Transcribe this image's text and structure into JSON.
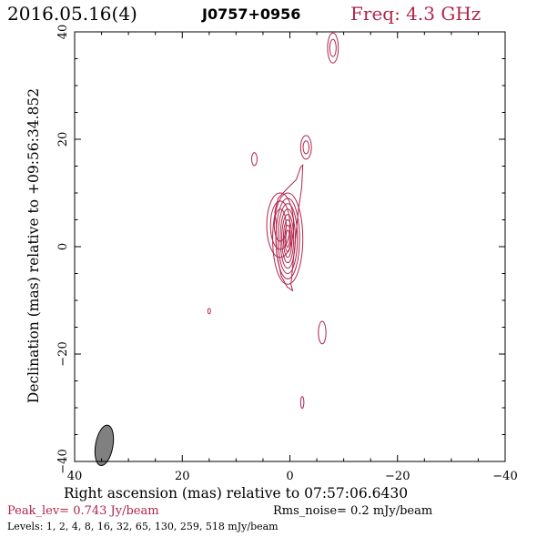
{
  "header": {
    "date": "2016.05.16(4)",
    "source": "J0757+0956",
    "freq": "Freq: 4.3 GHz"
  },
  "footer": {
    "peak": "Peak_lev=  0.743 Jy/beam",
    "rms": "Rms_noise=  0.2 mJy/beam",
    "levels": "Levels:   1,   2,   4,   8,  16,  32,  65, 130, 259, 518 mJy/beam"
  },
  "colors": {
    "contour": "#b0244a",
    "beam": "#808080",
    "axes": "#000000"
  },
  "chart_data": {
    "type": "contour",
    "xlabel": "Right ascension (mas) relative to 07:57:06.6430",
    "ylabel": "Declination (mas) relative to +09:56:34.852",
    "xlim": [
      40,
      -40
    ],
    "ylim": [
      -40,
      40
    ],
    "x_ticks": [
      "40",
      "20",
      "0",
      "−20",
      "−40"
    ],
    "y_ticks": [
      "−40",
      "−20",
      "0",
      "20",
      "40"
    ],
    "peak_jy_per_beam": 0.743,
    "rms_noise_mjy_per_beam": 0.2,
    "levels_mjy_per_beam": [
      1,
      2,
      4,
      8,
      16,
      32,
      65,
      130,
      259,
      518
    ],
    "core": {
      "ra": 0.5,
      "dec": 1.5
    },
    "features": [
      {
        "name": "core_nested",
        "ra": 0.4,
        "dec": 1.5,
        "rx": [
          2.8,
          2.2,
          1.8,
          1.4,
          1.1,
          0.8,
          0.55,
          0.35
        ],
        "ry": [
          8.5,
          7.5,
          6.5,
          5.5,
          4.5,
          3.5,
          2.5,
          1.6
        ]
      },
      {
        "name": "lobe_left",
        "ra": 1.8,
        "dec": 4.0,
        "rx": [
          2.5,
          1.8,
          1.1
        ],
        "ry": [
          6.0,
          4.5,
          3.0
        ]
      },
      {
        "name": "blob_20",
        "ra": -3.0,
        "dec": 18.5,
        "rx": [
          1.0,
          0.55
        ],
        "ry": [
          2.2,
          1.2
        ]
      },
      {
        "name": "blob_37",
        "ra": -8.0,
        "dec": 37.0,
        "rx": [
          1.0,
          0.6
        ],
        "ry": [
          2.8,
          1.6
        ]
      },
      {
        "name": "blob_16",
        "ra": 6.6,
        "dec": 16.3,
        "rx": [
          0.5
        ],
        "ry": [
          1.2
        ]
      },
      {
        "name": "blob_m17",
        "ra": -6.0,
        "dec": -16.0,
        "rx": [
          0.7
        ],
        "ry": [
          2.1
        ]
      },
      {
        "name": "blob_m29",
        "ra": -2.3,
        "dec": -29.0,
        "rx": [
          0.3
        ],
        "ry": [
          1.1
        ]
      },
      {
        "name": "blob_m12",
        "ra": 15.0,
        "dec": -12.0,
        "rx": [
          0.25
        ],
        "ry": [
          0.5
        ]
      }
    ],
    "envelope": [
      [
        2.5,
        4.0
      ],
      [
        2.8,
        6.5
      ],
      [
        2.2,
        9.0
      ],
      [
        0.5,
        10.8
      ],
      [
        -1.2,
        12.5
      ],
      [
        -2.0,
        14.8
      ],
      [
        -2.4,
        15.2
      ],
      [
        -2.2,
        11.0
      ],
      [
        -1.6,
        7.0
      ],
      [
        -1.2,
        3.0
      ],
      [
        -0.6,
        -3.0
      ],
      [
        -0.2,
        -7.0
      ],
      [
        -0.5,
        -8.2
      ],
      [
        0.5,
        -7.5
      ],
      [
        1.6,
        -5.5
      ],
      [
        2.4,
        -1.5
      ],
      [
        2.6,
        1.5
      ]
    ],
    "beam": {
      "ra": 34.5,
      "dec": -37.0,
      "major": 4.0,
      "minor": 1.7,
      "pa_deg": 10
    }
  }
}
